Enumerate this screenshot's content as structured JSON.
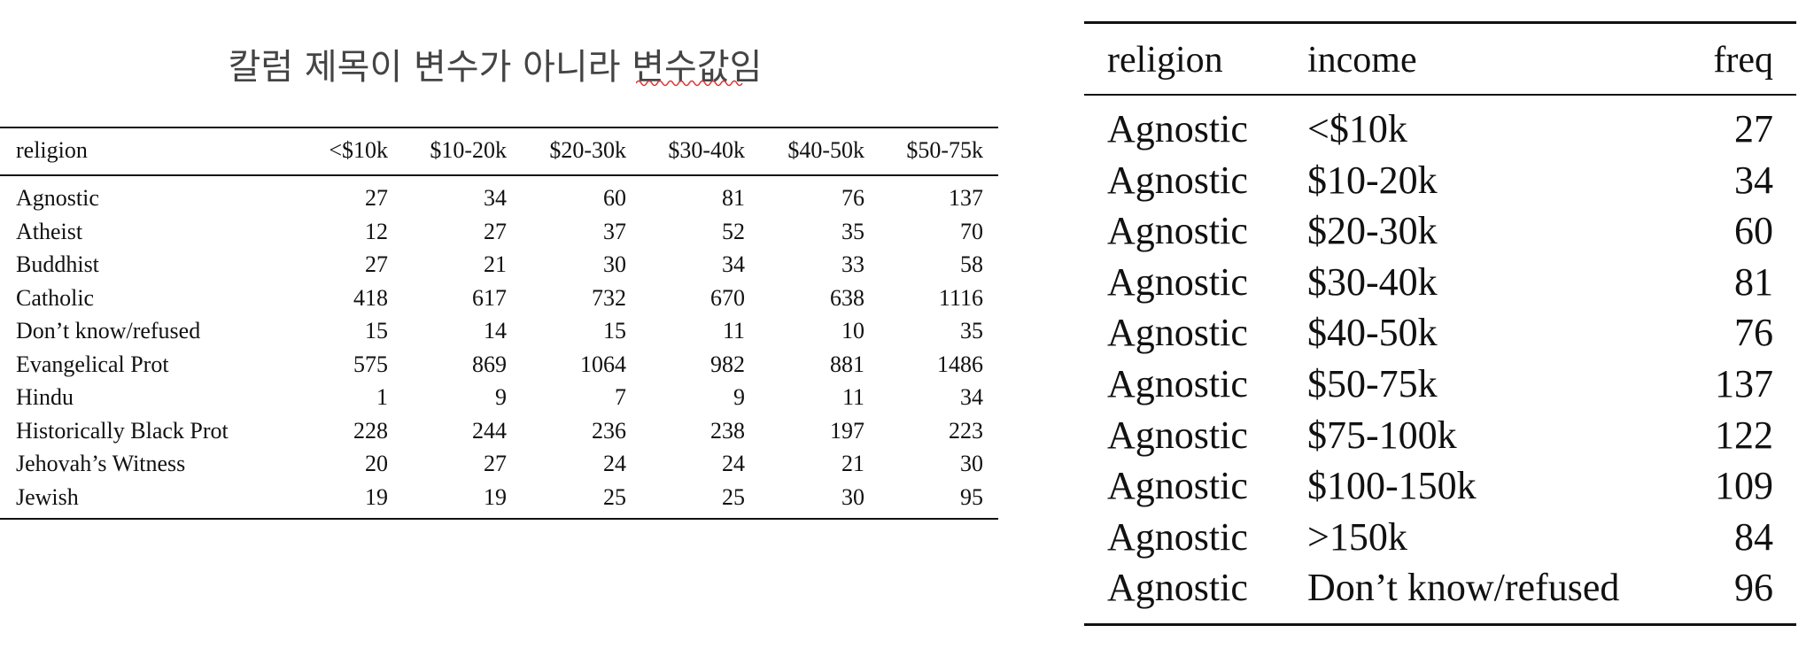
{
  "title": "칼럼 제목이 변수가 아니라 변수값임",
  "left_table": {
    "columns": [
      "religion",
      "<$10k",
      "$10-20k",
      "$20-30k",
      "$30-40k",
      "$40-50k",
      "$50-75k"
    ],
    "rows": [
      [
        "Agnostic",
        27,
        34,
        60,
        81,
        76,
        137
      ],
      [
        "Atheist",
        12,
        27,
        37,
        52,
        35,
        70
      ],
      [
        "Buddhist",
        27,
        21,
        30,
        34,
        33,
        58
      ],
      [
        "Catholic",
        418,
        617,
        732,
        670,
        638,
        1116
      ],
      [
        "Don’t know/refused",
        15,
        14,
        15,
        11,
        10,
        35
      ],
      [
        "Evangelical Prot",
        575,
        869,
        1064,
        982,
        881,
        1486
      ],
      [
        "Hindu",
        1,
        9,
        7,
        9,
        11,
        34
      ],
      [
        "Historically Black Prot",
        228,
        244,
        236,
        238,
        197,
        223
      ],
      [
        "Jehovah’s Witness",
        20,
        27,
        24,
        24,
        21,
        30
      ],
      [
        "Jewish",
        19,
        19,
        25,
        25,
        30,
        95
      ]
    ]
  },
  "right_table": {
    "columns": [
      "religion",
      "income",
      "freq"
    ],
    "rows": [
      [
        "Agnostic",
        "<$10k",
        27
      ],
      [
        "Agnostic",
        "$10-20k",
        34
      ],
      [
        "Agnostic",
        "$20-30k",
        60
      ],
      [
        "Agnostic",
        "$30-40k",
        81
      ],
      [
        "Agnostic",
        "$40-50k",
        76
      ],
      [
        "Agnostic",
        "$50-75k",
        137
      ],
      [
        "Agnostic",
        "$75-100k",
        122
      ],
      [
        "Agnostic",
        "$100-150k",
        109
      ],
      [
        "Agnostic",
        ">150k",
        84
      ],
      [
        "Agnostic",
        "Don’t know/refused",
        96
      ]
    ]
  }
}
